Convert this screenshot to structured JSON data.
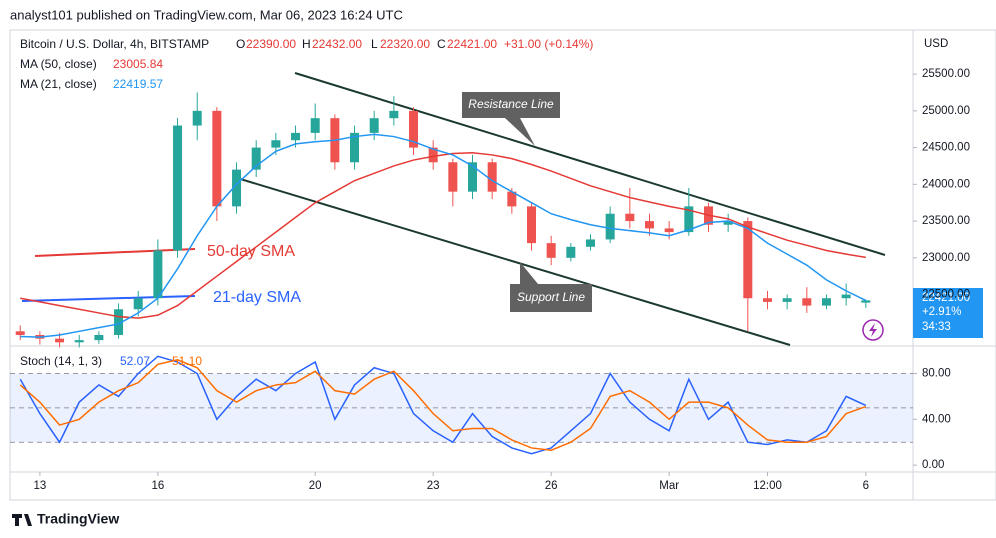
{
  "header": {
    "text": "analyst101 published on TradingView.com, Mar 06, 2023 16:24 UTC"
  },
  "chart_data": [
    {
      "type": "candlestick",
      "symbol": "Bitcoin / U.S. Dollar, 4h, BITSTAMP",
      "ohlc_labels": {
        "o": "O",
        "open": "22390.00",
        "h": "H",
        "high": "22432.00",
        "l": "L",
        "low": "22320.00",
        "c": "C",
        "close": "22421.00",
        "change": "+31.00 (+0.14%)"
      },
      "axis_label": "USD",
      "last_price_label": "22421.00",
      "change_pct": "+2.91%",
      "countdown": "34:33",
      "up_color": "#26a69a",
      "down_color": "#ef5350",
      "x": [
        -0.5,
        0,
        0.5,
        1,
        1.5,
        2,
        2.5,
        3,
        3.5,
        4,
        4.5,
        5,
        5.5,
        6,
        6.5,
        7,
        7.5,
        8,
        8.5,
        9,
        9.5,
        10,
        10.5,
        11,
        11.5,
        12,
        12.5,
        13,
        13.5,
        14,
        14.5,
        15,
        15.5,
        16,
        16.5,
        17,
        17.5,
        18,
        18.5,
        19,
        19.5,
        20,
        20.5,
        21
      ],
      "xlim": [
        -0.76,
        22.2
      ],
      "xticks": [
        {
          "value": 0,
          "label": "13"
        },
        {
          "value": 3,
          "label": "16"
        },
        {
          "value": 7,
          "label": "20"
        },
        {
          "value": 10,
          "label": "23"
        },
        {
          "value": 13,
          "label": "26"
        },
        {
          "value": 16,
          "label": "Mar"
        },
        {
          "value": 18.5,
          "label": "12:00"
        },
        {
          "value": 21,
          "label": "6"
        }
      ],
      "ylim": [
        21800,
        26100
      ],
      "yticks": [
        {
          "value": 22500,
          "label": "22500.00"
        },
        {
          "value": 23000,
          "label": "23000.00"
        },
        {
          "value": 23500,
          "label": "23500.00"
        },
        {
          "value": 24000,
          "label": "24000.00"
        },
        {
          "value": 24500,
          "label": "24500.00"
        },
        {
          "value": 25000,
          "label": "25000.00"
        },
        {
          "value": 25500,
          "label": "25500.00"
        }
      ],
      "open": [
        22000,
        21950,
        21900,
        21850,
        21880,
        21950,
        22300,
        22450,
        23100,
        24800,
        25000,
        23700,
        24200,
        24500,
        24600,
        24700,
        24900,
        24300,
        24700,
        24900,
        25000,
        24500,
        24300,
        23900,
        24300,
        23900,
        23700,
        23200,
        23000,
        23150,
        23250,
        23600,
        23500,
        23400,
        23350,
        23700,
        23450,
        23500,
        22450,
        22400,
        22450,
        22350,
        22450,
        22390
      ],
      "high": [
        22080,
        22000,
        21980,
        21950,
        22000,
        22380,
        22550,
        23250,
        24900,
        25250,
        25050,
        24300,
        24600,
        24700,
        24800,
        25100,
        24950,
        24800,
        25000,
        25200,
        25050,
        24600,
        24350,
        24400,
        24350,
        23950,
        23750,
        23300,
        23200,
        23320,
        23700,
        23950,
        23600,
        23500,
        23950,
        23750,
        23600,
        23550,
        22550,
        22500,
        22600,
        22500,
        22650,
        22432
      ],
      "low": [
        21880,
        21820,
        21780,
        21780,
        21830,
        21900,
        22200,
        22350,
        23000,
        24600,
        23500,
        23600,
        24100,
        24400,
        24500,
        24600,
        24200,
        24200,
        24600,
        24800,
        24400,
        24200,
        23700,
        23800,
        23800,
        23600,
        23100,
        22900,
        22950,
        23100,
        23200,
        23400,
        23300,
        23250,
        23300,
        23350,
        23350,
        22000,
        22300,
        22300,
        22250,
        22300,
        22350,
        22320
      ],
      "close": [
        21950,
        21900,
        21850,
        21880,
        21950,
        22300,
        22450,
        23100,
        24800,
        25000,
        23700,
        24200,
        24500,
        24600,
        24700,
        24900,
        24300,
        24700,
        24900,
        25000,
        24500,
        24300,
        23900,
        24300,
        23900,
        23700,
        23200,
        23000,
        23150,
        23250,
        23600,
        23500,
        23400,
        23350,
        23700,
        23450,
        23500,
        22450,
        22400,
        22450,
        22350,
        22450,
        22500,
        22421
      ],
      "series": [
        {
          "name": "MA (50, close)",
          "color": "#e53935",
          "last_label": "23005.84",
          "values": [
            22450,
            22400,
            22350,
            22300,
            22250,
            22200,
            22180,
            22220,
            22350,
            22550,
            22750,
            22950,
            23150,
            23350,
            23550,
            23750,
            23900,
            24050,
            24150,
            24250,
            24330,
            24380,
            24420,
            24430,
            24400,
            24350,
            24270,
            24180,
            24080,
            23980,
            23900,
            23820,
            23760,
            23700,
            23650,
            23580,
            23530,
            23420,
            23330,
            23240,
            23170,
            23100,
            23050,
            23005.84
          ]
        },
        {
          "name": "MA (21, close)",
          "color": "#2196f3",
          "last_label": "22419.57",
          "values": [
            21930,
            21920,
            21950,
            22000,
            22050,
            22100,
            22250,
            22450,
            22850,
            23300,
            23700,
            24000,
            24250,
            24450,
            24550,
            24580,
            24600,
            24650,
            24680,
            24650,
            24580,
            24480,
            24400,
            24250,
            24050,
            23900,
            23750,
            23600,
            23520,
            23450,
            23400,
            23370,
            23340,
            23300,
            23380,
            23480,
            23500,
            23400,
            23200,
            23050,
            22900,
            22700,
            22550,
            22419.57
          ]
        }
      ],
      "annotations": {
        "resistance": "Resistance Line",
        "support": "Support Line",
        "sma50": "50-day SMA",
        "sma21": "21-day SMA"
      }
    },
    {
      "type": "line",
      "title": "Stoch (14, 1, 3)",
      "ylim": [
        -6,
        104
      ],
      "yticks": [
        {
          "value": 0,
          "label": "0.00"
        },
        {
          "value": 40,
          "label": "40.00"
        },
        {
          "value": 80,
          "label": "80.00"
        }
      ],
      "bands": [
        20,
        50,
        80
      ],
      "series": [
        {
          "name": "%K",
          "color": "#2962ff",
          "last_label": "52.07",
          "values": [
            75,
            45,
            20,
            55,
            70,
            60,
            80,
            95,
            90,
            80,
            40,
            60,
            75,
            65,
            80,
            90,
            40,
            70,
            85,
            80,
            45,
            30,
            20,
            45,
            25,
            15,
            10,
            15,
            30,
            45,
            80,
            55,
            40,
            30,
            75,
            40,
            55,
            20,
            18,
            22,
            20,
            30,
            60,
            52.07
          ]
        },
        {
          "name": "%D",
          "color": "#ff6d00",
          "last_label": "51.10",
          "values": [
            70,
            55,
            35,
            40,
            55,
            65,
            72,
            88,
            92,
            85,
            65,
            55,
            65,
            70,
            72,
            82,
            65,
            62,
            75,
            82,
            65,
            45,
            30,
            32,
            32,
            22,
            15,
            13,
            20,
            32,
            60,
            65,
            55,
            40,
            55,
            55,
            50,
            35,
            22,
            20,
            20,
            25,
            45,
            51.1
          ]
        }
      ]
    }
  ],
  "footer": {
    "brand": "TradingView"
  }
}
